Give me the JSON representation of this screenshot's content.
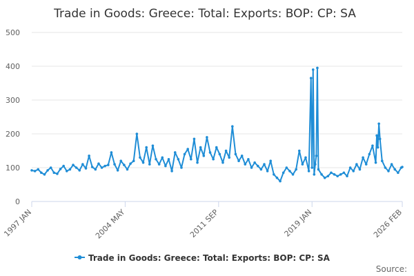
{
  "chart_data": {
    "type": "line",
    "title": "Trade in Goods: Greece: Total: Exports: BOP: CP: SA",
    "xlabel": "",
    "ylabel": "",
    "ylim": [
      0,
      500
    ],
    "y_ticks": [
      0,
      100,
      200,
      300,
      400,
      500
    ],
    "x_range": [
      1997.0,
      2026.083
    ],
    "x_tick_labels": [
      {
        "label": "1997 JAN",
        "year": 1997.0
      },
      {
        "label": "2004 MAY",
        "year": 2004.333
      },
      {
        "label": "2011 SEP",
        "year": 2011.667
      },
      {
        "label": "2019 JAN",
        "year": 2019.0
      },
      {
        "label": "2026 FEB",
        "year": 2026.083
      }
    ],
    "series": [
      {
        "name": "Trade in Goods: Greece: Total: Exports: BOP: CP: SA",
        "color": "#1f8dd6",
        "points": [
          [
            1997.0,
            92
          ],
          [
            1997.25,
            90
          ],
          [
            1997.5,
            95
          ],
          [
            1997.75,
            85
          ],
          [
            1998.0,
            80
          ],
          [
            1998.25,
            92
          ],
          [
            1998.5,
            100
          ],
          [
            1998.75,
            85
          ],
          [
            1999.0,
            82
          ],
          [
            1999.25,
            96
          ],
          [
            1999.5,
            105
          ],
          [
            1999.75,
            90
          ],
          [
            2000.0,
            95
          ],
          [
            2000.25,
            108
          ],
          [
            2000.5,
            100
          ],
          [
            2000.75,
            92
          ],
          [
            2001.0,
            110
          ],
          [
            2001.25,
            98
          ],
          [
            2001.5,
            135
          ],
          [
            2001.75,
            102
          ],
          [
            2002.0,
            95
          ],
          [
            2002.25,
            112
          ],
          [
            2002.5,
            100
          ],
          [
            2002.75,
            105
          ],
          [
            2003.0,
            108
          ],
          [
            2003.25,
            145
          ],
          [
            2003.5,
            110
          ],
          [
            2003.75,
            92
          ],
          [
            2004.0,
            120
          ],
          [
            2004.25,
            108
          ],
          [
            2004.5,
            95
          ],
          [
            2004.75,
            112
          ],
          [
            2005.0,
            120
          ],
          [
            2005.25,
            200
          ],
          [
            2005.5,
            130
          ],
          [
            2005.75,
            115
          ],
          [
            2006.0,
            160
          ],
          [
            2006.25,
            110
          ],
          [
            2006.5,
            165
          ],
          [
            2006.75,
            125
          ],
          [
            2007.0,
            110
          ],
          [
            2007.25,
            130
          ],
          [
            2007.5,
            105
          ],
          [
            2007.75,
            125
          ],
          [
            2008.0,
            90
          ],
          [
            2008.25,
            145
          ],
          [
            2008.5,
            125
          ],
          [
            2008.75,
            100
          ],
          [
            2009.0,
            140
          ],
          [
            2009.25,
            155
          ],
          [
            2009.5,
            125
          ],
          [
            2009.75,
            185
          ],
          [
            2010.0,
            115
          ],
          [
            2010.25,
            160
          ],
          [
            2010.5,
            135
          ],
          [
            2010.75,
            190
          ],
          [
            2011.0,
            145
          ],
          [
            2011.25,
            125
          ],
          [
            2011.5,
            160
          ],
          [
            2011.75,
            140
          ],
          [
            2012.0,
            115
          ],
          [
            2012.25,
            150
          ],
          [
            2012.5,
            130
          ],
          [
            2012.75,
            222
          ],
          [
            2013.0,
            140
          ],
          [
            2013.25,
            120
          ],
          [
            2013.5,
            135
          ],
          [
            2013.75,
            110
          ],
          [
            2014.0,
            125
          ],
          [
            2014.25,
            100
          ],
          [
            2014.5,
            115
          ],
          [
            2014.75,
            105
          ],
          [
            2015.0,
            95
          ],
          [
            2015.25,
            110
          ],
          [
            2015.5,
            90
          ],
          [
            2015.75,
            120
          ],
          [
            2016.0,
            80
          ],
          [
            2016.25,
            70
          ],
          [
            2016.5,
            60
          ],
          [
            2016.75,
            85
          ],
          [
            2017.0,
            100
          ],
          [
            2017.25,
            90
          ],
          [
            2017.5,
            80
          ],
          [
            2017.75,
            95
          ],
          [
            2018.0,
            150
          ],
          [
            2018.25,
            110
          ],
          [
            2018.5,
            130
          ],
          [
            2018.75,
            90
          ],
          [
            2018.917,
            365
          ],
          [
            2019.0,
            100
          ],
          [
            2019.083,
            390
          ],
          [
            2019.167,
            80
          ],
          [
            2019.25,
            110
          ],
          [
            2019.333,
            135
          ],
          [
            2019.417,
            395
          ],
          [
            2019.5,
            95
          ],
          [
            2019.75,
            80
          ],
          [
            2020.0,
            70
          ],
          [
            2020.25,
            75
          ],
          [
            2020.5,
            85
          ],
          [
            2020.75,
            80
          ],
          [
            2021.0,
            75
          ],
          [
            2021.25,
            80
          ],
          [
            2021.5,
            85
          ],
          [
            2021.75,
            75
          ],
          [
            2022.0,
            100
          ],
          [
            2022.25,
            90
          ],
          [
            2022.5,
            110
          ],
          [
            2022.75,
            95
          ],
          [
            2023.0,
            130
          ],
          [
            2023.25,
            110
          ],
          [
            2023.5,
            140
          ],
          [
            2023.75,
            165
          ],
          [
            2024.0,
            115
          ],
          [
            2024.083,
            195
          ],
          [
            2024.167,
            160
          ],
          [
            2024.25,
            230
          ],
          [
            2024.333,
            185
          ],
          [
            2024.5,
            120
          ],
          [
            2024.75,
            100
          ],
          [
            2025.0,
            90
          ],
          [
            2025.25,
            110
          ],
          [
            2025.5,
            95
          ],
          [
            2025.75,
            85
          ],
          [
            2026.0,
            100
          ],
          [
            2026.083,
            102
          ]
        ]
      }
    ],
    "legend_position": "bottom-center"
  },
  "credits": "Source:"
}
